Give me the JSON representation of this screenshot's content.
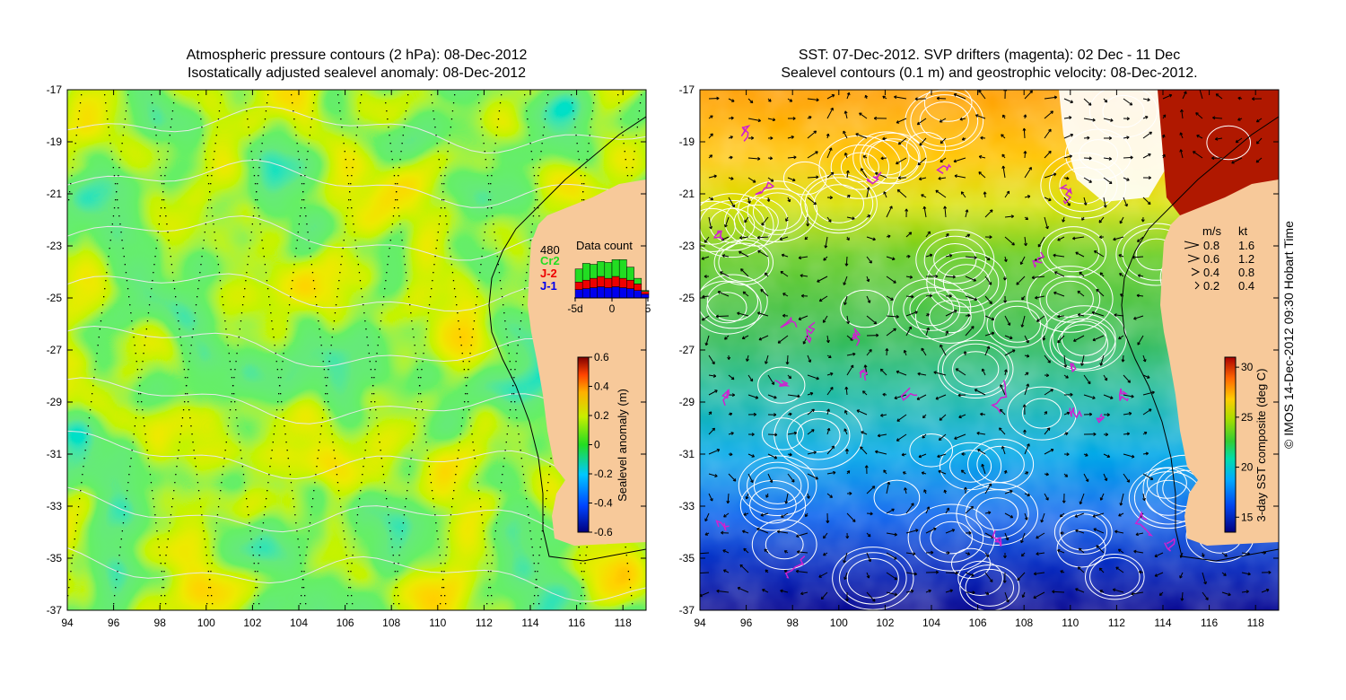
{
  "left_panel": {
    "title_line1": "Atmospheric pressure contours (2 hPa): 08-Dec-2012",
    "title_line2": "Isostatically adjusted sealevel anomaly: 08-Dec-2012",
    "colorbar": {
      "label": "Sealevel anomaly (m)",
      "ticks": [
        "0.6",
        "0.4",
        "0.2",
        "0",
        "-0.2",
        "-0.4",
        "-0.6"
      ]
    },
    "data_count": {
      "title": "Data count",
      "max_label": "480",
      "series": [
        {
          "name": "Cr2",
          "color": "#22dd22"
        },
        {
          "name": "J-2",
          "color": "#ee0000"
        },
        {
          "name": "J-1",
          "color": "#0000ee"
        }
      ],
      "x_ticks": [
        "-5d",
        "0",
        "5"
      ],
      "bars": [
        {
          "day": -5,
          "j1": 90,
          "j2": 80,
          "cr2": 140
        },
        {
          "day": -4,
          "j1": 100,
          "j2": 90,
          "cr2": 180
        },
        {
          "day": -3,
          "j1": 110,
          "j2": 100,
          "cr2": 150
        },
        {
          "day": -2,
          "j1": 120,
          "j2": 110,
          "cr2": 160
        },
        {
          "day": -1,
          "j1": 110,
          "j2": 100,
          "cr2": 170
        },
        {
          "day": 0,
          "j1": 120,
          "j2": 110,
          "cr2": 180
        },
        {
          "day": 1,
          "j1": 110,
          "j2": 100,
          "cr2": 200
        },
        {
          "day": 2,
          "j1": 100,
          "j2": 90,
          "cr2": 140
        },
        {
          "day": 3,
          "j1": 80,
          "j2": 70,
          "cr2": 60
        },
        {
          "day": 4,
          "j1": 40,
          "j2": 30,
          "cr2": 10
        }
      ]
    }
  },
  "right_panel": {
    "title_line1": "SST: 07-Dec-2012. SVP drifters (magenta): 02 Dec - 11 Dec",
    "title_line2": "Sealevel contours (0.1 m) and geostrophic velocity: 08-Dec-2012.",
    "colorbar": {
      "label": "3-day SST composite (deg C)",
      "ticks": [
        "30",
        "25",
        "20",
        "15"
      ]
    },
    "velocity_legend": {
      "headers": [
        "m/s",
        "kt"
      ],
      "rows": [
        {
          "ms": "0.8",
          "kt": "1.6"
        },
        {
          "ms": "0.6",
          "kt": "1.2"
        },
        {
          "ms": "0.4",
          "kt": "0.8"
        },
        {
          "ms": "0.2",
          "kt": "0.4"
        }
      ]
    }
  },
  "axes": {
    "x_ticks": [
      "94",
      "96",
      "98",
      "100",
      "102",
      "104",
      "106",
      "108",
      "110",
      "112",
      "114",
      "116",
      "118"
    ],
    "y_ticks": [
      "-17",
      "-19",
      "-21",
      "-23",
      "-25",
      "-27",
      "-29",
      "-31",
      "-33",
      "-35",
      "-37"
    ],
    "lon_range": [
      94,
      119
    ],
    "lat_range": [
      -37,
      -17
    ]
  },
  "copyright": "© IMOS 14-Dec-2012 09:30 Hobart Time",
  "colors": {
    "land": "#f7c99a",
    "ssh_palette": [
      "#00007f",
      "#0055ff",
      "#00c8ff",
      "#22dd22",
      "#c8ee00",
      "#ffc800",
      "#ff5500",
      "#7f0000"
    ],
    "sst_palette": [
      "#00007f",
      "#0044ee",
      "#00aaff",
      "#00ddaa",
      "#33cc33",
      "#aadd00",
      "#ffcc00",
      "#ff6600",
      "#aa0000"
    ]
  }
}
